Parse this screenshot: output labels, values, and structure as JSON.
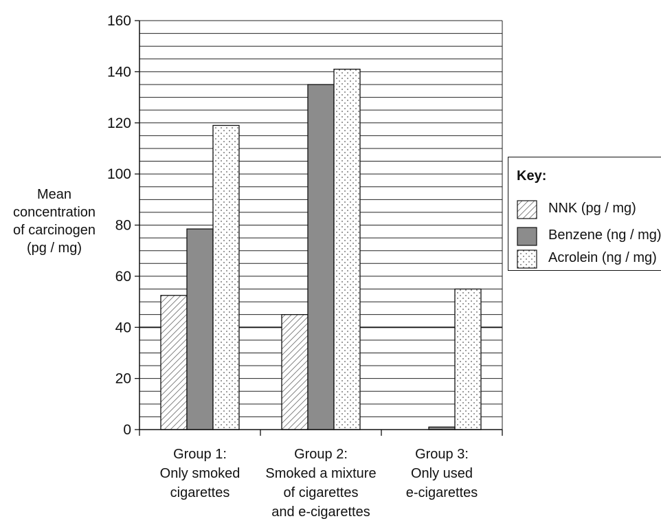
{
  "chart_data": {
    "type": "bar",
    "ylabel_lines": [
      "Mean",
      "concentration",
      "of carcinogen",
      "(pg / mg)"
    ],
    "ylim": [
      0,
      160
    ],
    "yticks": [
      0,
      20,
      40,
      60,
      80,
      100,
      120,
      140,
      160
    ],
    "minor_gridline_step": 5,
    "emphasized_gridline": 40,
    "categories": [
      {
        "lines": [
          "Group 1:",
          "Only smoked",
          "cigarettes"
        ]
      },
      {
        "lines": [
          "Group 2:",
          "Smoked a mixture",
          "of cigarettes",
          "and e-cigarettes"
        ]
      },
      {
        "lines": [
          "Group 3:",
          "Only used",
          "e-cigarettes"
        ]
      }
    ],
    "legend_title": "Key:",
    "series": [
      {
        "name": "NNK (pg / mg)",
        "pattern": "hatch",
        "color": "#ffffff",
        "values": [
          52.5,
          45,
          0
        ]
      },
      {
        "name": "Benzene (ng / mg)",
        "pattern": "solid",
        "color": "#8c8c8c",
        "values": [
          78.5,
          135,
          1
        ]
      },
      {
        "name": "Acrolein (ng / mg)",
        "pattern": "dots",
        "color": "#ffffff",
        "values": [
          119,
          141,
          55
        ]
      }
    ]
  }
}
